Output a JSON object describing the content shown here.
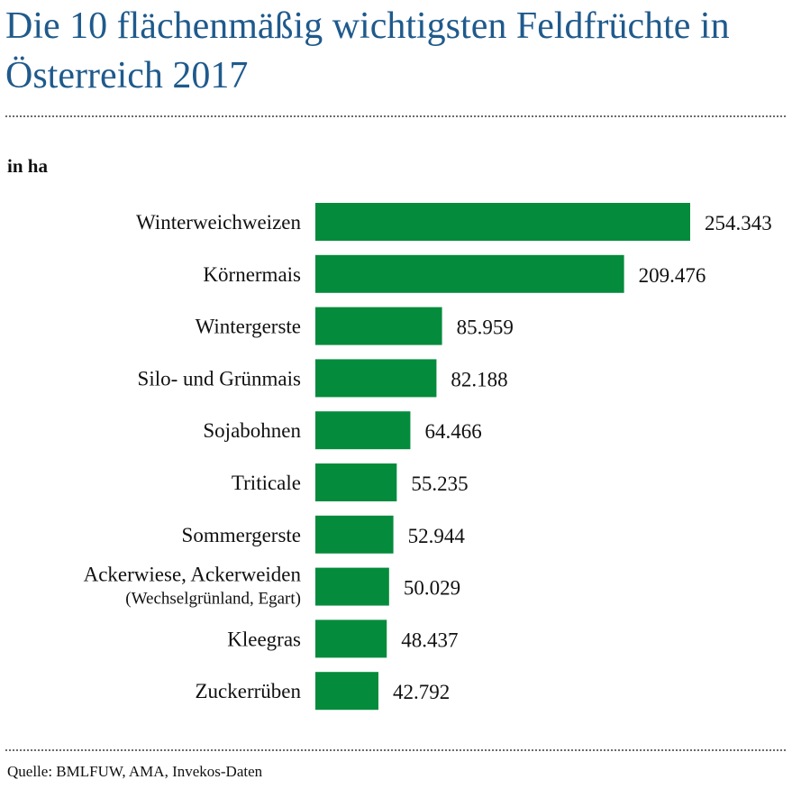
{
  "header": {
    "title": "Die 10 flächenmäßig wichtigsten Feldfrüchte in Österreich 2017",
    "unit_label": "in ha"
  },
  "footer": {
    "source": "Quelle: BMLFUW, AMA, Invekos-Daten"
  },
  "colors": {
    "bar": "#058b3c",
    "title": "#1f5a8c"
  },
  "chart_data": {
    "type": "bar",
    "orientation": "horizontal",
    "title": "Die 10 flächenmäßig wichtigsten Feldfrüchte in Österreich 2017",
    "unit": "in ha",
    "categories": [
      "Winterweichweizen",
      "Körnermais",
      "Wintergerste",
      "Silo- und Grünmais",
      "Sojabohnen",
      "Triticale",
      "Sommergerste",
      "Ackerwiese, Ackerweiden",
      "Kleegras",
      "Zuckerrüben"
    ],
    "sublabels": [
      "",
      "",
      "",
      "",
      "",
      "",
      "",
      "(Wechselgrünland, Egart)",
      "",
      ""
    ],
    "values": [
      254343,
      209476,
      85959,
      82188,
      64466,
      55235,
      52944,
      50029,
      48437,
      42792
    ],
    "value_labels": [
      "254.343",
      "209.476",
      "85.959",
      "82.188",
      "64.466",
      "55.235",
      "52.944",
      "50.029",
      "48.437",
      "42.792"
    ],
    "xlim": [
      0,
      254343
    ],
    "grid": false,
    "legend": "none"
  }
}
